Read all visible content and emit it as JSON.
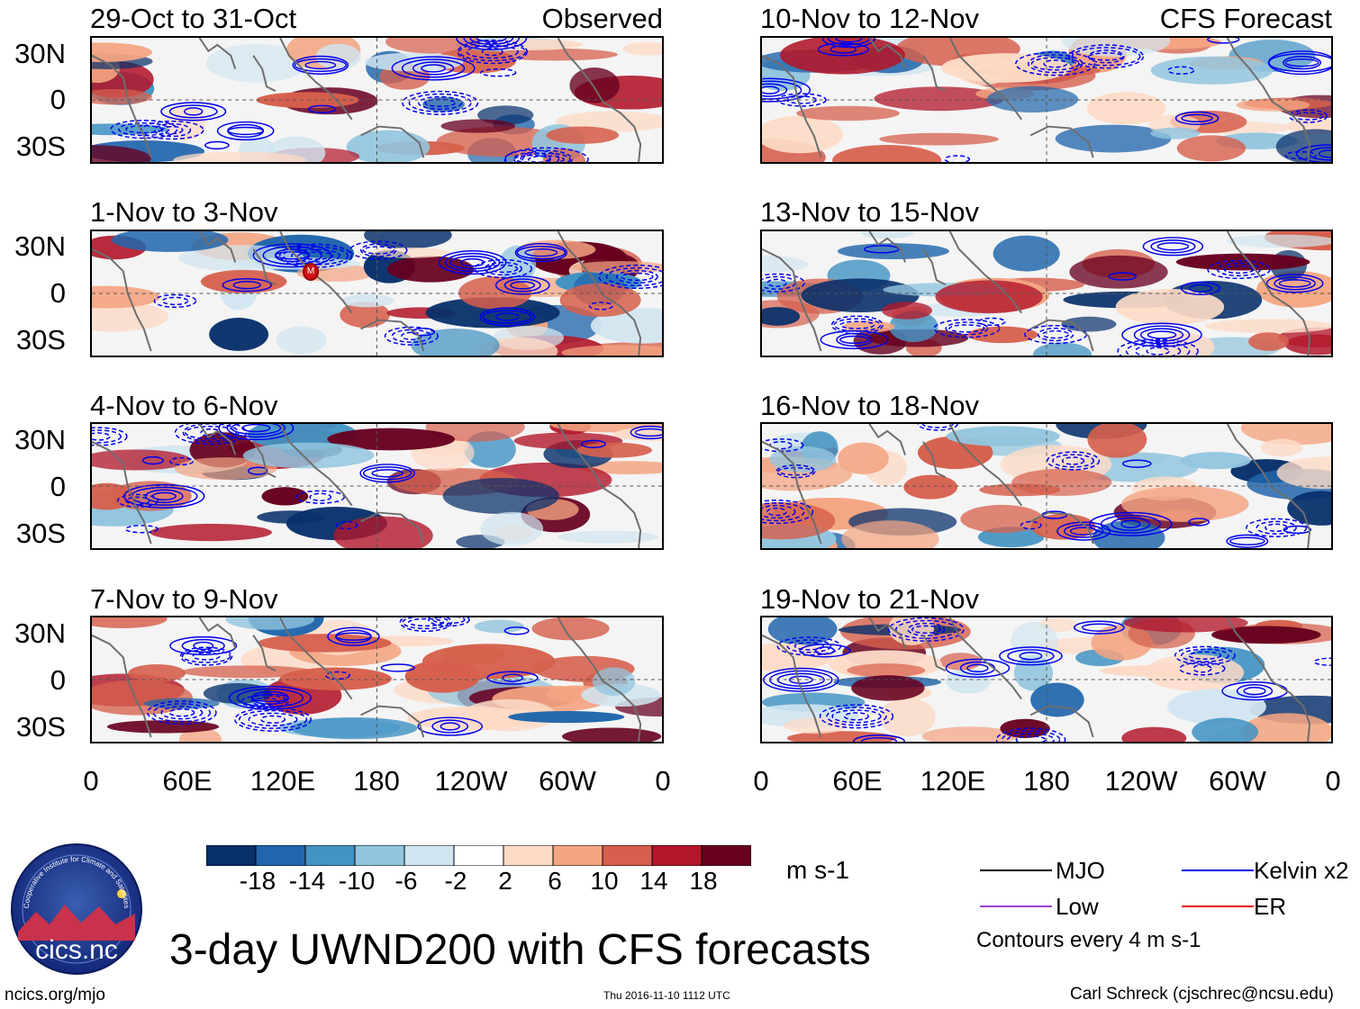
{
  "title": "3-day UWND200 with CFS forecasts",
  "colorbar": {
    "units": "m s-1",
    "ticks": [
      "-18",
      "-14",
      "-10",
      "-6",
      "-2",
      "2",
      "6",
      "10",
      "14",
      "18"
    ],
    "colors": [
      "#08306b",
      "#2166ac",
      "#4393c3",
      "#92c5de",
      "#d1e5f0",
      "#ffffff",
      "#fddbc7",
      "#f4a582",
      "#d6604d",
      "#b2182b",
      "#67001f"
    ]
  },
  "legend": {
    "mjo": "MJO",
    "kelvin": "Kelvin x2",
    "low": "Low",
    "er": "ER",
    "contour_note": "Contours every 4 m s-1",
    "colors": {
      "mjo": "#000000",
      "kelvin": "#0000ee",
      "low": "#a040d0",
      "er": "#ee0000"
    }
  },
  "axes": {
    "lat_ticks": [
      "30N",
      "0",
      "30S"
    ],
    "lon_ticks": [
      "0",
      "60E",
      "120E",
      "180",
      "120W",
      "60W",
      "0"
    ]
  },
  "panels": {
    "left_tag": "Observed",
    "right_tag": "CFS Forecast",
    "left": [
      "29-Oct to 31-Oct",
      "1-Nov to 3-Nov",
      "4-Nov to 6-Nov",
      "7-Nov to 9-Nov"
    ],
    "right": [
      "10-Nov to 12-Nov",
      "13-Nov to 15-Nov",
      "16-Nov to 18-Nov",
      "19-Nov to 21-Nov"
    ]
  },
  "logo": {
    "name": "cics.nc",
    "ring_text": "Cooperative Institute for Climate and Satellites"
  },
  "marker": "M",
  "footer": {
    "left": "ncics.org/mjo",
    "center": "Thu 2016-11-10 1112 UTC",
    "right": "Carl Schreck (cjschrec@ncsu.edu)"
  },
  "chart_data": {
    "type": "heatmap",
    "title": "3-day UWND200 with CFS forecasts",
    "variable": "200-hPa zonal wind",
    "units": "m s-1",
    "x_ticks": [
      "0",
      "60E",
      "120E",
      "180",
      "120W",
      "60W",
      "0"
    ],
    "y_ticks": [
      "30N",
      "0",
      "30S"
    ],
    "color_levels": [
      -18,
      -14,
      -10,
      -6,
      -2,
      2,
      6,
      10,
      14,
      18
    ],
    "contours": "every 4 m s-1",
    "panels_observed": [
      "29-Oct to 31-Oct",
      "1-Nov to 3-Nov",
      "4-Nov to 6-Nov",
      "7-Nov to 9-Nov"
    ],
    "panels_forecast": [
      "10-Nov to 12-Nov",
      "13-Nov to 15-Nov",
      "16-Nov to 18-Nov",
      "19-Nov to 21-Nov"
    ]
  }
}
